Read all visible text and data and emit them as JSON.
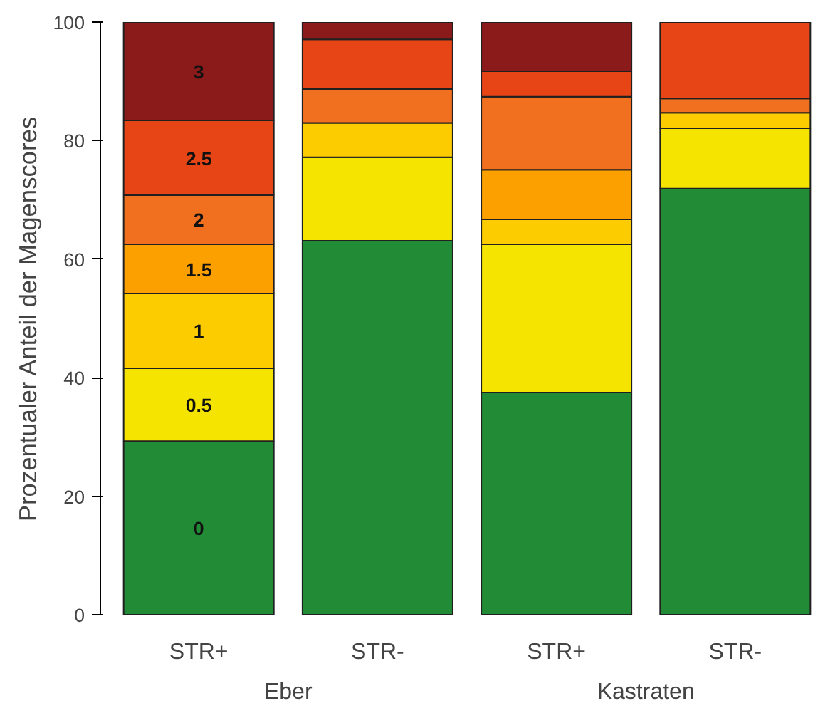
{
  "chart_data": {
    "type": "bar",
    "stacked": true,
    "ylabel": "Prozentualer Anteil der Magenscores",
    "categories": [
      "STR+",
      "STR-",
      "STR+",
      "STR-"
    ],
    "annotations": [
      "Eber",
      "Kastraten"
    ],
    "ylim": [
      0,
      100
    ],
    "yticks": [
      0,
      20,
      40,
      60,
      80,
      100
    ],
    "grid": false,
    "series": [
      {
        "name": "0",
        "color": "#228b35",
        "values": [
          29.3,
          63.1,
          37.5,
          71.9
        ]
      },
      {
        "name": "0.5",
        "color": "#f5e400",
        "values": [
          12.3,
          14.1,
          25.0,
          10.2
        ]
      },
      {
        "name": "1",
        "color": "#fccc00",
        "values": [
          12.6,
          5.8,
          4.2,
          2.6
        ]
      },
      {
        "name": "1.5",
        "color": "#fca000",
        "values": [
          8.3,
          0,
          8.4,
          0
        ]
      },
      {
        "name": "2",
        "color": "#f07020",
        "values": [
          8.3,
          5.7,
          12.3,
          2.4
        ]
      },
      {
        "name": "2.5",
        "color": "#e84516",
        "values": [
          12.6,
          8.4,
          4.3,
          12.9
        ]
      },
      {
        "name": "3",
        "color": "#8b1a1a",
        "values": [
          16.6,
          2.9,
          8.3,
          0
        ]
      }
    ]
  }
}
